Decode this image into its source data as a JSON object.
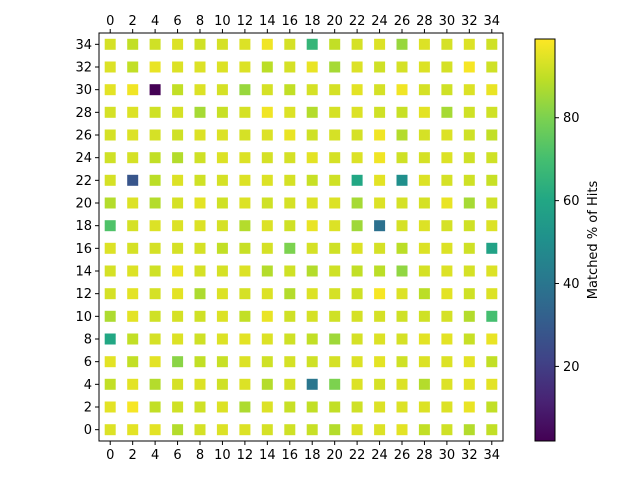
{
  "chart_data": {
    "type": "heatmap",
    "title": "",
    "xlabel": "",
    "ylabel": "",
    "x": [
      0,
      2,
      4,
      6,
      8,
      10,
      12,
      14,
      16,
      18,
      20,
      22,
      24,
      26,
      28,
      30,
      32,
      34
    ],
    "y": [
      0,
      2,
      4,
      6,
      8,
      10,
      12,
      14,
      16,
      18,
      20,
      22,
      24,
      26,
      28,
      30,
      32,
      34
    ],
    "x_ticks": [
      "0",
      "2",
      "4",
      "6",
      "8",
      "10",
      "12",
      "14",
      "16",
      "18",
      "20",
      "22",
      "24",
      "26",
      "28",
      "30",
      "32",
      "34"
    ],
    "y_ticks": [
      "0",
      "2",
      "4",
      "6",
      "8",
      "10",
      "12",
      "14",
      "16",
      "18",
      "20",
      "22",
      "24",
      "26",
      "28",
      "30",
      "32",
      "34"
    ],
    "x_axis_position": "top and bottom",
    "grid": false,
    "colormap": "viridis",
    "color_range": [
      2,
      99
    ],
    "colorbar": {
      "label": "Matched % of Hits",
      "ticks": [
        "20",
        "40",
        "60",
        "80"
      ],
      "tick_values": [
        20,
        40,
        60,
        80
      ],
      "placement": "right"
    },
    "values": [
      [
        94,
        95,
        95,
        88,
        93,
        94,
        94,
        93,
        92,
        91,
        88,
        94,
        94,
        95,
        90,
        92,
        88,
        90
      ],
      [
        95,
        98,
        90,
        92,
        92,
        94,
        87,
        94,
        91,
        90,
        90,
        92,
        94,
        94,
        94,
        94,
        96,
        90
      ],
      [
        90,
        95,
        88,
        93,
        94,
        92,
        94,
        88,
        93,
        40,
        80,
        94,
        93,
        94,
        88,
        94,
        95,
        95
      ],
      [
        95,
        90,
        95,
        82,
        90,
        91,
        94,
        92,
        93,
        92,
        93,
        94,
        95,
        92,
        94,
        94,
        95,
        90
      ],
      [
        60,
        90,
        93,
        94,
        92,
        94,
        95,
        94,
        92,
        90,
        85,
        93,
        94,
        93,
        95,
        95,
        91,
        96
      ],
      [
        87,
        95,
        92,
        93,
        92,
        94,
        90,
        96,
        92,
        93,
        92,
        93,
        93,
        92,
        92,
        93,
        88,
        70
      ],
      [
        93,
        95,
        93,
        95,
        87,
        94,
        93,
        94,
        88,
        94,
        93,
        92,
        98,
        94,
        89,
        95,
        92,
        94
      ],
      [
        93,
        94,
        92,
        96,
        93,
        93,
        94,
        88,
        92,
        88,
        92,
        90,
        89,
        83,
        93,
        94,
        93,
        94
      ],
      [
        94,
        93,
        93,
        93,
        93,
        90,
        91,
        93,
        80,
        93,
        92,
        94,
        93,
        89,
        94,
        94,
        92,
        58
      ],
      [
        72,
        93,
        94,
        94,
        94,
        93,
        88,
        94,
        92,
        96,
        94,
        85,
        38,
        93,
        94,
        93,
        92,
        94
      ],
      [
        88,
        94,
        88,
        93,
        95,
        92,
        94,
        92,
        93,
        94,
        94,
        86,
        94,
        93,
        93,
        96,
        86,
        92
      ],
      [
        93,
        28,
        89,
        94,
        92,
        93,
        94,
        94,
        93,
        91,
        92,
        60,
        95,
        50,
        94,
        93,
        92,
        91
      ],
      [
        92,
        93,
        90,
        88,
        92,
        94,
        94,
        93,
        93,
        95,
        93,
        94,
        97,
        92,
        93,
        94,
        92,
        92
      ],
      [
        93,
        94,
        93,
        92,
        94,
        94,
        93,
        94,
        96,
        92,
        93,
        93,
        97,
        88,
        93,
        94,
        92,
        90
      ],
      [
        93,
        94,
        92,
        93,
        86,
        91,
        93,
        97,
        94,
        88,
        93,
        94,
        92,
        91,
        95,
        86,
        92,
        92
      ],
      [
        95,
        97,
        2,
        90,
        94,
        93,
        84,
        93,
        90,
        93,
        93,
        95,
        93,
        97,
        93,
        92,
        94,
        96
      ],
      [
        94,
        90,
        96,
        94,
        94,
        94,
        94,
        89,
        93,
        96,
        86,
        94,
        92,
        93,
        94,
        93,
        98,
        92
      ],
      [
        93,
        90,
        92,
        94,
        92,
        93,
        94,
        97,
        93,
        66,
        90,
        93,
        94,
        84,
        94,
        93,
        94,
        92
      ]
    ]
  }
}
